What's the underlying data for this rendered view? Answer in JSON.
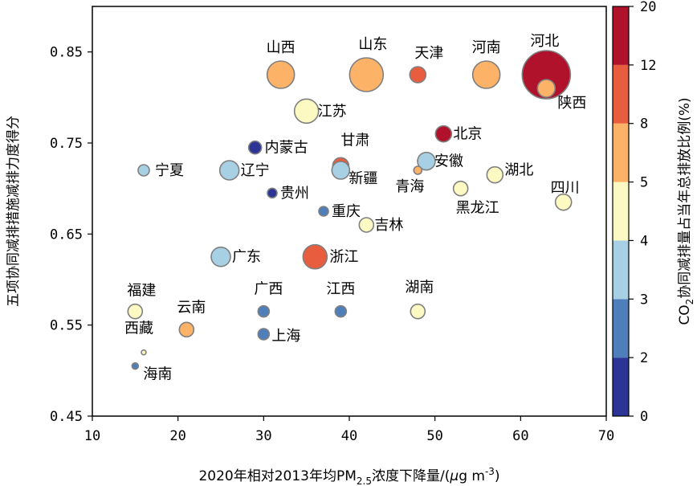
{
  "chart_data": {
    "type": "scatter",
    "xlabel": "2020年相对2013年均PM2.5浓度下降量/(μg m⁻³)",
    "xlabel_parts": {
      "pre": "2020年相对2013年均PM",
      "sub": "2.5",
      "mid": "浓度下降量/(",
      "mu": "μ",
      "g": "g m",
      "sup": "-3",
      "post": ")"
    },
    "ylabel": "五项协同减排措施减排力度得分",
    "colorbar_label": "CO2协同减排量占当年总排放比例(%)",
    "colorbar_label_parts": {
      "pre": "CO",
      "sub": "2",
      "post": "协同减排量占当年总排放比例(%)"
    },
    "xlim": [
      10,
      70
    ],
    "ylim": [
      0.45,
      0.9
    ],
    "xticks": [
      "10",
      "20",
      "30",
      "40",
      "50",
      "60",
      "70"
    ],
    "yticks": [
      "0.45",
      "0.55",
      "0.65",
      "0.75",
      "0.85"
    ],
    "colorbar_ticks": [
      "0",
      "2",
      "3",
      "4",
      "5",
      "8",
      "12",
      "20"
    ],
    "colorbar_colors": [
      "#2c3596",
      "#4f7fbb",
      "#a8d0e4",
      "#fdf9c2",
      "#fcb267",
      "#e75d3e",
      "#b0112b"
    ],
    "grid": false,
    "points": [
      {
        "name": "河北",
        "x": 63,
        "y": 0.825,
        "co2": 15,
        "size": 30,
        "color": "#b0112b"
      },
      {
        "name": "陕西",
        "x": 63,
        "y": 0.81,
        "co2": 6,
        "size": 11,
        "color": "#fcb267"
      },
      {
        "name": "山西",
        "x": 32,
        "y": 0.825,
        "co2": 6,
        "size": 17,
        "color": "#fcb267"
      },
      {
        "name": "山东",
        "x": 42,
        "y": 0.825,
        "co2": 6,
        "size": 21,
        "color": "#fcb267"
      },
      {
        "name": "天津",
        "x": 48,
        "y": 0.825,
        "co2": 10,
        "size": 10,
        "color": "#e75d3e"
      },
      {
        "name": "河南",
        "x": 56,
        "y": 0.825,
        "co2": 6,
        "size": 17,
        "color": "#fcb267"
      },
      {
        "name": "江苏",
        "x": 35,
        "y": 0.785,
        "co2": 4.5,
        "size": 15,
        "color": "#fdf9c2"
      },
      {
        "name": "北京",
        "x": 51,
        "y": 0.76,
        "co2": 15,
        "size": 10,
        "color": "#b0112b"
      },
      {
        "name": "内蒙古",
        "x": 29,
        "y": 0.745,
        "co2": 1,
        "size": 8,
        "color": "#2c3596"
      },
      {
        "name": "甘肃",
        "x": 39,
        "y": 0.725,
        "co2": 10,
        "size": 10,
        "color": "#e75d3e"
      },
      {
        "name": "新疆",
        "x": 39,
        "y": 0.72,
        "co2": 3.5,
        "size": 11,
        "color": "#a8d0e4"
      },
      {
        "name": "安徽",
        "x": 49,
        "y": 0.73,
        "co2": 3.5,
        "size": 11,
        "color": "#a8d0e4"
      },
      {
        "name": "青海",
        "x": 48,
        "y": 0.72,
        "co2": 6,
        "size": 5,
        "color": "#fcb267"
      },
      {
        "name": "湖北",
        "x": 57,
        "y": 0.715,
        "co2": 4.5,
        "size": 10,
        "color": "#fdf9c2"
      },
      {
        "name": "宁夏",
        "x": 16,
        "y": 0.72,
        "co2": 3.5,
        "size": 7,
        "color": "#a8d0e4"
      },
      {
        "name": "辽宁",
        "x": 26,
        "y": 0.72,
        "co2": 3.5,
        "size": 12,
        "color": "#a8d0e4"
      },
      {
        "name": "贵州",
        "x": 31,
        "y": 0.695,
        "co2": 1,
        "size": 6,
        "color": "#2c3596"
      },
      {
        "name": "黑龙江",
        "x": 53,
        "y": 0.7,
        "co2": 4.5,
        "size": 9,
        "color": "#fdf9c2"
      },
      {
        "name": "四川",
        "x": 65,
        "y": 0.685,
        "co2": 4.5,
        "size": 10,
        "color": "#fdf9c2"
      },
      {
        "name": "重庆",
        "x": 37,
        "y": 0.675,
        "co2": 2.5,
        "size": 6,
        "color": "#4f7fbb"
      },
      {
        "name": "吉林",
        "x": 42,
        "y": 0.66,
        "co2": 4.5,
        "size": 9,
        "color": "#fdf9c2"
      },
      {
        "name": "广东",
        "x": 25,
        "y": 0.625,
        "co2": 3.5,
        "size": 12,
        "color": "#a8d0e4"
      },
      {
        "name": "浙江",
        "x": 36,
        "y": 0.625,
        "co2": 10,
        "size": 15,
        "color": "#e75d3e"
      },
      {
        "name": "福建",
        "x": 15,
        "y": 0.565,
        "co2": 4.5,
        "size": 9,
        "color": "#fdf9c2"
      },
      {
        "name": "广西",
        "x": 30,
        "y": 0.565,
        "co2": 2.5,
        "size": 7,
        "color": "#4f7fbb"
      },
      {
        "name": "江西",
        "x": 39,
        "y": 0.565,
        "co2": 2.5,
        "size": 7,
        "color": "#4f7fbb"
      },
      {
        "name": "湖南",
        "x": 48,
        "y": 0.565,
        "co2": 4.5,
        "size": 9,
        "color": "#fdf9c2"
      },
      {
        "name": "云南",
        "x": 21,
        "y": 0.545,
        "co2": 6,
        "size": 9,
        "color": "#fcb267"
      },
      {
        "name": "上海",
        "x": 30,
        "y": 0.54,
        "co2": 2.5,
        "size": 7,
        "color": "#4f7fbb"
      },
      {
        "name": "西藏",
        "x": 16,
        "y": 0.52,
        "co2": 4.5,
        "size": 3,
        "color": "#fdf9c2"
      },
      {
        "name": "海南",
        "x": 15,
        "y": 0.505,
        "co2": 2.5,
        "size": 4,
        "color": "#4f7fbb"
      }
    ]
  }
}
